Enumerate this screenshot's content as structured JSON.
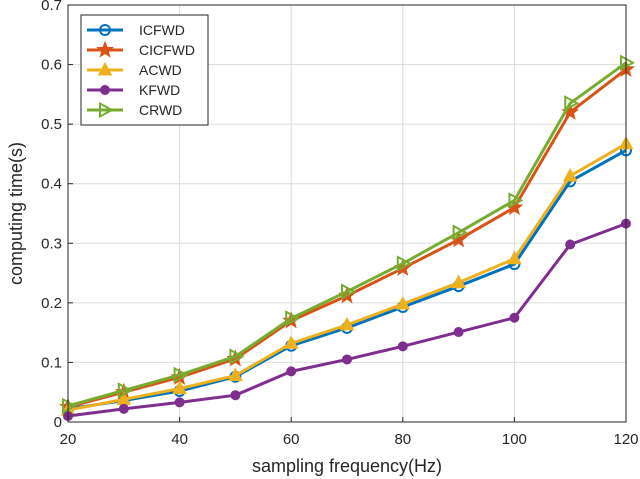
{
  "chart_data": {
    "type": "line",
    "title": "",
    "xlabel": "sampling frequency(Hz)",
    "ylabel": "computing time(s)",
    "xlim": [
      20,
      120
    ],
    "ylim": [
      0,
      0.7
    ],
    "x_ticks": [
      "20",
      "40",
      "60",
      "80",
      "100",
      "120"
    ],
    "y_ticks": [
      "0",
      "0.1",
      "0.2",
      "0.3",
      "0.4",
      "0.5",
      "0.6",
      "0.7"
    ],
    "grid": true,
    "legend_position": "top-left",
    "x": [
      20,
      30,
      40,
      50,
      60,
      70,
      80,
      90,
      100,
      110,
      120
    ],
    "series": [
      {
        "name": "ICFWD",
        "color": "#0072BD",
        "marker": "circle",
        "values": [
          0.022,
          0.036,
          0.052,
          0.076,
          0.128,
          0.158,
          0.193,
          0.228,
          0.265,
          0.404,
          0.456
        ]
      },
      {
        "name": "CICFWD",
        "color": "#D95319",
        "marker": "star",
        "values": [
          0.025,
          0.05,
          0.075,
          0.106,
          0.17,
          0.212,
          0.258,
          0.306,
          0.36,
          0.52,
          0.592
        ]
      },
      {
        "name": "ACWD",
        "color": "#EDB120",
        "marker": "triangle-up",
        "values": [
          0.02,
          0.038,
          0.056,
          0.078,
          0.132,
          0.163,
          0.198,
          0.234,
          0.274,
          0.413,
          0.467
        ]
      },
      {
        "name": "KFWD",
        "color": "#7E2F8E",
        "marker": "filled-circle",
        "values": [
          0.01,
          0.022,
          0.033,
          0.045,
          0.085,
          0.105,
          0.127,
          0.151,
          0.175,
          0.298,
          0.333
        ]
      },
      {
        "name": "CRWD",
        "color": "#77AC30",
        "marker": "triangle-right",
        "values": [
          0.027,
          0.053,
          0.079,
          0.11,
          0.174,
          0.219,
          0.266,
          0.318,
          0.372,
          0.535,
          0.603
        ]
      }
    ]
  }
}
